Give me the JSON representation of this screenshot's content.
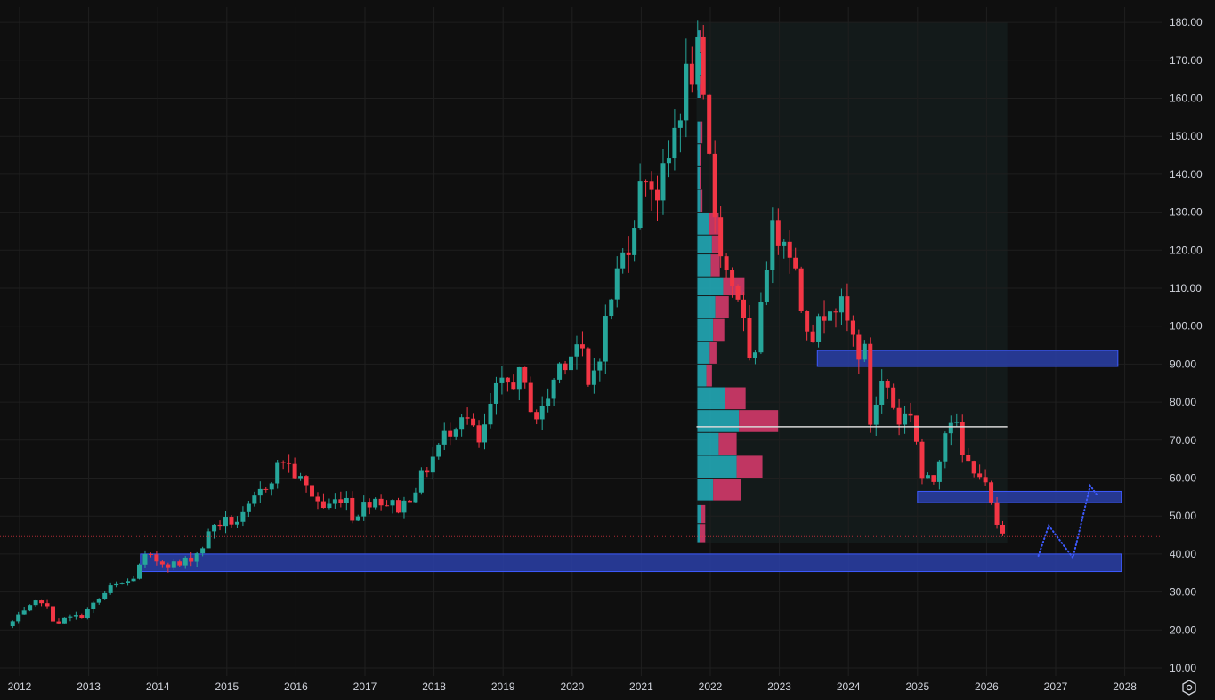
{
  "chart_data": {
    "type": "candlestick",
    "title": "",
    "xlabel": "",
    "ylabel": "",
    "x_ticks": [
      "2012",
      "2013",
      "2014",
      "2015",
      "2016",
      "2017",
      "2018",
      "2019",
      "2020",
      "2021",
      "2022",
      "2023",
      "2024",
      "2025",
      "2026",
      "2027",
      "2028"
    ],
    "y_ticks": [
      "10.00",
      "20.00",
      "30.00",
      "40.00",
      "50.00",
      "60.00",
      "70.00",
      "80.00",
      "90.00",
      "100.00",
      "110.00",
      "120.00",
      "130.00",
      "140.00",
      "150.00",
      "160.00",
      "170.00",
      "180.00"
    ],
    "ylim": [
      10,
      180
    ],
    "xlim": [
      2011.85,
      2028.2
    ],
    "grid": true,
    "legend": "none",
    "colors": {
      "up": "#26a69a",
      "down": "#f23645",
      "background": "#0f0f0f",
      "grid": "#1f1f1f",
      "zone": "#2a3fa8",
      "zone_border": "#3d5afe",
      "poc_line": "#d8d8d8",
      "profile_up": "#22a7b5",
      "profile_down": "#d43a6a",
      "price_line": "#f23645",
      "projection": "#3d5afe",
      "range_bg": "#131a1a"
    },
    "anchors": [
      [
        2011.9,
        21
      ],
      [
        2012.4,
        28
      ],
      [
        2012.6,
        22
      ],
      [
        2013.0,
        24
      ],
      [
        2013.4,
        31
      ],
      [
        2013.7,
        33
      ],
      [
        2013.9,
        39
      ],
      [
        2014.4,
        37
      ],
      [
        2014.7,
        41
      ],
      [
        2014.9,
        48
      ],
      [
        2015.3,
        49
      ],
      [
        2015.6,
        57
      ],
      [
        2015.9,
        65
      ],
      [
        2016.2,
        58
      ],
      [
        2016.5,
        52
      ],
      [
        2016.8,
        56
      ],
      [
        2016.9,
        50
      ],
      [
        2017.2,
        55
      ],
      [
        2017.6,
        52
      ],
      [
        2017.9,
        60
      ],
      [
        2018.2,
        70
      ],
      [
        2018.5,
        78
      ],
      [
        2018.75,
        68
      ],
      [
        2018.95,
        82
      ],
      [
        2019.3,
        87
      ],
      [
        2019.6,
        75
      ],
      [
        2019.9,
        90
      ],
      [
        2020.2,
        96
      ],
      [
        2020.3,
        82
      ],
      [
        2020.5,
        95
      ],
      [
        2020.7,
        112
      ],
      [
        2020.9,
        123
      ],
      [
        2021.0,
        131
      ],
      [
        2021.15,
        141
      ],
      [
        2021.3,
        135
      ],
      [
        2021.45,
        140
      ],
      [
        2021.6,
        155
      ],
      [
        2021.75,
        166
      ],
      [
        2021.9,
        170
      ],
      [
        2022.0,
        153
      ],
      [
        2022.15,
        130
      ],
      [
        2022.3,
        115
      ],
      [
        2022.5,
        108
      ],
      [
        2022.7,
        83
      ],
      [
        2022.85,
        115
      ],
      [
        2023.0,
        125
      ],
      [
        2023.2,
        125
      ],
      [
        2023.4,
        106
      ],
      [
        2023.6,
        97
      ],
      [
        2023.8,
        108
      ],
      [
        2024.0,
        104
      ],
      [
        2024.2,
        94
      ],
      [
        2024.35,
        92
      ],
      [
        2024.4,
        75
      ],
      [
        2024.6,
        87
      ],
      [
        2024.8,
        75
      ],
      [
        2025.0,
        78
      ],
      [
        2025.15,
        60
      ],
      [
        2025.3,
        58
      ],
      [
        2025.5,
        75
      ],
      [
        2025.6,
        77
      ],
      [
        2025.75,
        64
      ],
      [
        2025.95,
        63
      ],
      [
        2026.15,
        53
      ],
      [
        2026.25,
        45
      ]
    ],
    "volume_profile": {
      "x_start": 2021.8,
      "x_end": 2026.3,
      "poc_price": 73.5,
      "rows": [
        {
          "lo": 43,
          "hi": 48,
          "up": 0.2,
          "down": 0.5
        },
        {
          "lo": 48,
          "hi": 53,
          "up": 0.3,
          "down": 0.4
        },
        {
          "lo": 54,
          "hi": 60,
          "up": 1.4,
          "down": 2.5
        },
        {
          "lo": 60,
          "hi": 66,
          "up": 3.5,
          "down": 2.3
        },
        {
          "lo": 66,
          "hi": 72,
          "up": 1.9,
          "down": 1.6
        },
        {
          "lo": 72,
          "hi": 78,
          "up": 3.7,
          "down": 3.5
        },
        {
          "lo": 78,
          "hi": 84,
          "up": 2.5,
          "down": 1.8
        },
        {
          "lo": 84,
          "hi": 90,
          "up": 0.8,
          "down": 0.5
        },
        {
          "lo": 90,
          "hi": 96,
          "up": 1.1,
          "down": 0.6
        },
        {
          "lo": 96,
          "hi": 102,
          "up": 1.4,
          "down": 1.0
        },
        {
          "lo": 102,
          "hi": 108,
          "up": 1.6,
          "down": 1.2
        },
        {
          "lo": 108,
          "hi": 113,
          "up": 2.3,
          "down": 1.9
        },
        {
          "lo": 113,
          "hi": 119,
          "up": 1.2,
          "down": 0.8
        },
        {
          "lo": 119,
          "hi": 124,
          "up": 1.3,
          "down": 0.8
        },
        {
          "lo": 124,
          "hi": 130,
          "up": 1.0,
          "down": 0.9
        },
        {
          "lo": 130,
          "hi": 136,
          "up": 0.25,
          "down": 0.2
        },
        {
          "lo": 136,
          "hi": 142,
          "up": 0.2,
          "down": 0.15
        },
        {
          "lo": 142,
          "hi": 148,
          "up": 0.2,
          "down": 0.15
        },
        {
          "lo": 148,
          "hi": 154,
          "up": 0.25,
          "down": 0.2
        },
        {
          "lo": 160,
          "hi": 166,
          "up": 0.2,
          "down": 0.15
        },
        {
          "lo": 166,
          "hi": 172,
          "up": 0.3,
          "down": 0.15
        },
        {
          "lo": 172,
          "hi": 178,
          "up": 0.2,
          "down": 0.1
        }
      ]
    },
    "zones": [
      {
        "name": "zone-35-40",
        "x0": 2013.75,
        "x1": 2027.95,
        "y0": 35.4,
        "y1": 40.0
      },
      {
        "name": "zone-54-56",
        "x0": 2025.0,
        "x1": 2027.95,
        "y0": 53.5,
        "y1": 56.5
      },
      {
        "name": "zone-89-93",
        "x0": 2023.55,
        "x1": 2027.9,
        "y0": 89.4,
        "y1": 93.6
      }
    ],
    "current_price": 44.6,
    "projection": [
      [
        2026.75,
        39.5
      ],
      [
        2026.9,
        47.5
      ],
      [
        2027.25,
        39.0
      ],
      [
        2027.5,
        58.0
      ],
      [
        2027.6,
        55.5
      ]
    ]
  },
  "icons": {
    "settings": "settings-gear-icon"
  }
}
